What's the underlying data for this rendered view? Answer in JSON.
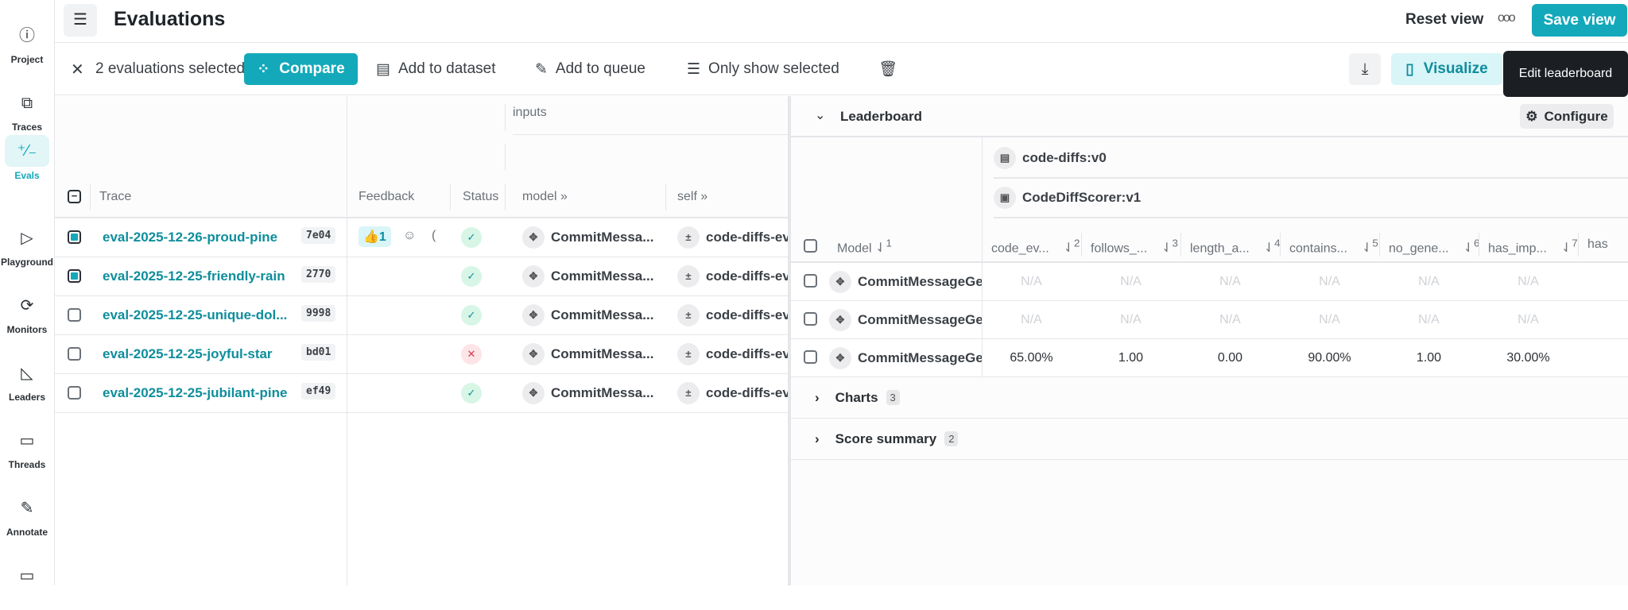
{
  "sidebar": {
    "items": [
      {
        "label": "Project",
        "icon": "info-icon",
        "glyph": "ⓘ"
      },
      {
        "label": "Traces",
        "icon": "traces-icon",
        "glyph": "⧉"
      },
      {
        "label": "Evals",
        "icon": "evals-icon",
        "glyph": "⁺⁄₋",
        "active": true
      },
      {
        "label": "Playground",
        "icon": "play-icon",
        "glyph": "▷"
      },
      {
        "label": "Monitors",
        "icon": "monitor-icon",
        "glyph": "⟳"
      },
      {
        "label": "Leaders",
        "icon": "leaders-icon",
        "glyph": "◺"
      },
      {
        "label": "Threads",
        "icon": "threads-icon",
        "glyph": "▭"
      },
      {
        "label": "Annotate",
        "icon": "pen-icon",
        "glyph": "✎"
      },
      {
        "label": "",
        "icon": "folder-icon",
        "glyph": "▭"
      }
    ]
  },
  "header": {
    "title": "Evaluations",
    "reset": "Reset view",
    "save": "Save view"
  },
  "toolbar": {
    "selected": "2 evaluations selected:",
    "compare": "Compare",
    "add_dataset": "Add to dataset",
    "add_queue": "Add to queue",
    "only_selected": "Only show selected",
    "visualize": "Visualize",
    "tooltip": "Edit leaderboard"
  },
  "table": {
    "group": "inputs",
    "columns": {
      "trace": "Trace",
      "feedback": "Feedback",
      "status": "Status",
      "model": "model",
      "self": "self"
    },
    "rows": [
      {
        "name": "eval-2025-12-26-proud-pine",
        "hash": "7e04",
        "checked": true,
        "feedback": "👍1",
        "status": "success",
        "model": "CommitMessa...",
        "self": "code-diffs-eva"
      },
      {
        "name": "eval-2025-12-25-friendly-rain",
        "hash": "2770",
        "checked": true,
        "feedback": "",
        "status": "success",
        "model": "CommitMessa...",
        "self": "code-diffs-eva"
      },
      {
        "name": "eval-2025-12-25-unique-dol...",
        "hash": "9998",
        "checked": false,
        "feedback": "",
        "status": "success",
        "model": "CommitMessa...",
        "self": "code-diffs-eva"
      },
      {
        "name": "eval-2025-12-25-joyful-star",
        "hash": "bd01",
        "checked": false,
        "feedback": "",
        "status": "error",
        "model": "CommitMessa...",
        "self": "code-diffs-eva"
      },
      {
        "name": "eval-2025-12-25-jubilant-pine",
        "hash": "ef49",
        "checked": false,
        "feedback": "",
        "status": "success",
        "model": "CommitMessa...",
        "self": "code-diffs-eva"
      }
    ]
  },
  "leaderboard": {
    "title": "Leaderboard",
    "configure": "Configure",
    "dataset": "code-diffs:v0",
    "scorer": "CodeDiffScorer:v1",
    "model_col": "Model",
    "model_sort": "1",
    "metrics": [
      {
        "label": "code_ev...",
        "sort": "2"
      },
      {
        "label": "follows_...",
        "sort": "3"
      },
      {
        "label": "length_a...",
        "sort": "4"
      },
      {
        "label": "contains...",
        "sort": "5"
      },
      {
        "label": "no_gene...",
        "sort": "6"
      },
      {
        "label": "has_imp...",
        "sort": "7"
      },
      {
        "label": "has",
        "sort": ""
      }
    ],
    "rows": [
      {
        "model": "CommitMessageGe",
        "values": [
          "N/A",
          "N/A",
          "N/A",
          "N/A",
          "N/A",
          "N/A"
        ]
      },
      {
        "model": "CommitMessageGe",
        "values": [
          "N/A",
          "N/A",
          "N/A",
          "N/A",
          "N/A",
          "N/A"
        ]
      },
      {
        "model": "CommitMessageGe",
        "values": [
          "65.00%",
          "1.00",
          "0.00",
          "90.00%",
          "1.00",
          "30.00%"
        ]
      }
    ],
    "sections": [
      {
        "label": "Charts",
        "count": "3"
      },
      {
        "label": "Score summary",
        "count": "2"
      }
    ]
  },
  "colors": {
    "accent": "#13a9ba",
    "success": "#0e8e9c",
    "error": "#d63b4f"
  }
}
